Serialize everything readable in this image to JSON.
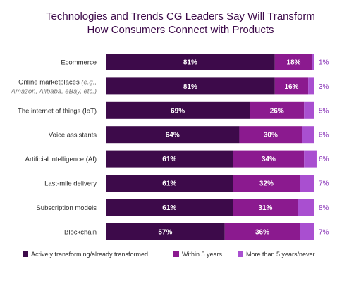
{
  "chart_data": {
    "type": "bar",
    "orientation": "horizontal",
    "stacked": true,
    "normalized": "percent",
    "title_lines": [
      "Technologies and Trends CG Leaders Say Will Transform",
      "How Consumers Connect with Products"
    ],
    "categories": [
      {
        "label": "Ecommerce"
      },
      {
        "label": "Online marketplaces",
        "label_suffix": " (e.g.,",
        "sublabel": "Amazon, Alibaba, eBay, etc.)"
      },
      {
        "label": "The internet of things (IoT)"
      },
      {
        "label": "Voice assistants"
      },
      {
        "label": "Artificial intelligence (AI)"
      },
      {
        "label": "Last-mile delivery"
      },
      {
        "label": "Subscription models"
      },
      {
        "label": "Blockchain"
      }
    ],
    "series": [
      {
        "name": "Actively transforming/already transformed",
        "color": "#3d0a4a",
        "values": [
          81,
          81,
          69,
          64,
          61,
          61,
          61,
          57
        ]
      },
      {
        "name": "Within 5 years",
        "color": "#8b1a8f",
        "values": [
          18,
          16,
          26,
          30,
          34,
          32,
          31,
          36
        ]
      },
      {
        "name": "More than 5 years/never",
        "color": "#a94fd0",
        "values": [
          1,
          3,
          5,
          6,
          6,
          7,
          8,
          7
        ]
      }
    ],
    "value_suffix": "%",
    "last_series_label_position": "outside-right",
    "legend_position": "bottom",
    "grid": false
  }
}
